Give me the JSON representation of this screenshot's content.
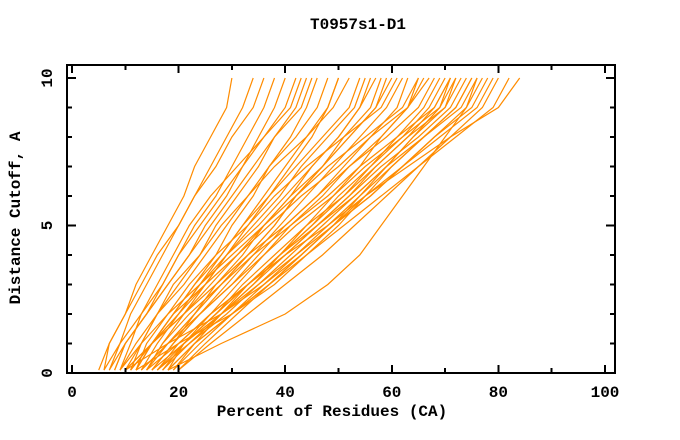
{
  "window": {
    "background": "#FFFFFF"
  },
  "chart_data": {
    "type": "line",
    "title": "T0957s1-D1",
    "xlabel": "Percent of Residues (CA)",
    "ylabel": "Distance Cutoff, A",
    "xlim": [
      0,
      100
    ],
    "ylim": [
      0,
      10
    ],
    "x_major_ticks": [
      0,
      20,
      40,
      60,
      80,
      100
    ],
    "x_minor_ticks": [
      10,
      30,
      50,
      70,
      90
    ],
    "y_major_ticks": [
      0,
      5,
      10
    ],
    "y_minor_ticks": [
      1,
      2,
      3,
      4,
      6,
      7,
      8,
      9
    ],
    "grid": false,
    "legend_position": "none",
    "curve_color": "#FF8C00",
    "axis_color": "#000000",
    "cutoffs": [
      0.1,
      1,
      2,
      3,
      4,
      5,
      6,
      7,
      8,
      9,
      10
    ],
    "series": [
      [
        5,
        7,
        10,
        12,
        15,
        18,
        21,
        23,
        26,
        29,
        30
      ],
      [
        6,
        7,
        10,
        13,
        16,
        20,
        23,
        27,
        30,
        34,
        36
      ],
      [
        7,
        10,
        14,
        18,
        22,
        25,
        29,
        32,
        35,
        38,
        40
      ],
      [
        8,
        10,
        14,
        18,
        22,
        26,
        30,
        34,
        38,
        43,
        45
      ],
      [
        9,
        12,
        16,
        21,
        25,
        29,
        33,
        37,
        42,
        46,
        48
      ],
      [
        10,
        15,
        21,
        25,
        29,
        33,
        37,
        41,
        45,
        48,
        50
      ],
      [
        11,
        13,
        16,
        19,
        24,
        28,
        33,
        38,
        44,
        49,
        52
      ],
      [
        12,
        15,
        20,
        25,
        29,
        34,
        39,
        43,
        48,
        53,
        55
      ],
      [
        13,
        18,
        23,
        28,
        33,
        38,
        42,
        47,
        51,
        56,
        58
      ],
      [
        14,
        17,
        21,
        26,
        31,
        36,
        41,
        47,
        52,
        57,
        60
      ],
      [
        15,
        19,
        24,
        29,
        34,
        39,
        44,
        49,
        54,
        59,
        62
      ],
      [
        16,
        22,
        28,
        33,
        39,
        44,
        49,
        54,
        58,
        63,
        65
      ],
      [
        12,
        15,
        19,
        25,
        31,
        37,
        43,
        50,
        56,
        63,
        67
      ],
      [
        10,
        15,
        21,
        27,
        33,
        40,
        46,
        52,
        59,
        65,
        68
      ],
      [
        14,
        20,
        26,
        33,
        39,
        45,
        51,
        56,
        62,
        67,
        70
      ],
      [
        15,
        19,
        24,
        30,
        36,
        42,
        49,
        55,
        62,
        69,
        72
      ],
      [
        16,
        21,
        27,
        33,
        39,
        46,
        52,
        58,
        65,
        71,
        74
      ],
      [
        18,
        23,
        30,
        36,
        42,
        48,
        54,
        60,
        66,
        72,
        75
      ],
      [
        17,
        21,
        27,
        33,
        40,
        46,
        53,
        59,
        66,
        73,
        76
      ],
      [
        19,
        24,
        30,
        37,
        43,
        49,
        56,
        62,
        68,
        75,
        78
      ],
      [
        20,
        26,
        33,
        40,
        47,
        53,
        59,
        65,
        71,
        77,
        80
      ],
      [
        18,
        23,
        30,
        37,
        44,
        51,
        58,
        65,
        72,
        79,
        82
      ],
      [
        16,
        20,
        26,
        33,
        40,
        48,
        55,
        63,
        71,
        80,
        84
      ],
      [
        8,
        10,
        14,
        17,
        20,
        23,
        27,
        30,
        33,
        36,
        38
      ],
      [
        9,
        11,
        13,
        17,
        20,
        24,
        28,
        32,
        36,
        40,
        42
      ],
      [
        11,
        15,
        19,
        23,
        27,
        30,
        34,
        37,
        41,
        44,
        46
      ],
      [
        13,
        16,
        20,
        24,
        28,
        32,
        36,
        40,
        44,
        48,
        50
      ],
      [
        12,
        15,
        19,
        23,
        28,
        32,
        37,
        42,
        47,
        52,
        54
      ],
      [
        14,
        18,
        23,
        27,
        32,
        36,
        41,
        45,
        50,
        54,
        56
      ],
      [
        15,
        19,
        23,
        28,
        33,
        38,
        42,
        47,
        52,
        57,
        59
      ],
      [
        13,
        18,
        24,
        30,
        35,
        40,
        46,
        51,
        56,
        61,
        63
      ],
      [
        17,
        21,
        26,
        31,
        36,
        41,
        47,
        52,
        58,
        63,
        66
      ],
      [
        19,
        23,
        28,
        34,
        39,
        45,
        50,
        56,
        61,
        66,
        69
      ],
      [
        16,
        22,
        28,
        34,
        40,
        46,
        52,
        57,
        63,
        68,
        71
      ],
      [
        18,
        21,
        27,
        32,
        38,
        44,
        51,
        57,
        63,
        70,
        73
      ],
      [
        20,
        25,
        31,
        37,
        43,
        49,
        55,
        62,
        68,
        74,
        77
      ],
      [
        10,
        13,
        16,
        20,
        24,
        27,
        31,
        35,
        38,
        42,
        44
      ],
      [
        7,
        9,
        11,
        14,
        17,
        20,
        23,
        26,
        29,
        32,
        34
      ],
      [
        11,
        15,
        20,
        24,
        29,
        35,
        40,
        45,
        50,
        54,
        57
      ],
      [
        15,
        21,
        28,
        35,
        42,
        49,
        56,
        62,
        69,
        76,
        79
      ],
      [
        6,
        9,
        13,
        16,
        19,
        22,
        26,
        31,
        36,
        41,
        43
      ],
      [
        12,
        14,
        18,
        22,
        27,
        33,
        38,
        44,
        51,
        58,
        61
      ],
      [
        17,
        22,
        29,
        35,
        41,
        47,
        53,
        59,
        64,
        70,
        72
      ],
      [
        9,
        13,
        18,
        24,
        30,
        36,
        42,
        48,
        55,
        62,
        65
      ],
      [
        14,
        17,
        22,
        28,
        34,
        41,
        48,
        54,
        61,
        68,
        71
      ],
      [
        12,
        20,
        30,
        38,
        44,
        50,
        55,
        60,
        66,
        72,
        75
      ],
      [
        10,
        18,
        28,
        36,
        43,
        49,
        54,
        59,
        64,
        69,
        71
      ],
      [
        18,
        28,
        40,
        48,
        54,
        58,
        62,
        66,
        70,
        74,
        76
      ]
    ]
  }
}
